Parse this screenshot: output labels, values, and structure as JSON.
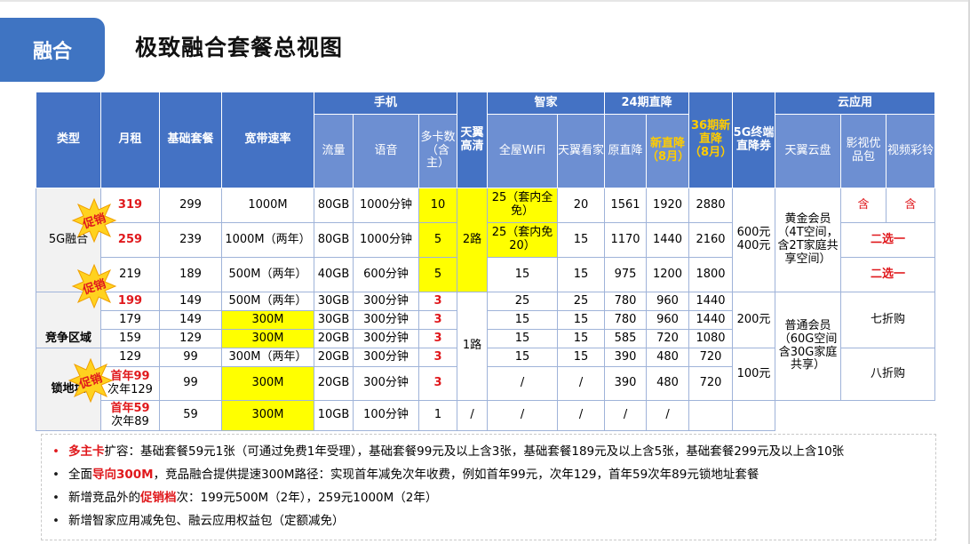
{
  "tab_label": "融合",
  "page_title": "极致融合套餐总视图",
  "table": {
    "headers": {
      "type": "类型",
      "monthly_rent": "月租",
      "base_package": "基础套餐",
      "bandwidth": "宽带速率",
      "mobile": "手机",
      "traffic": "流量",
      "voice": "语音",
      "multi_card": "多卡数（含主）",
      "hd": "天翼高清",
      "smart_home": "智家",
      "wifi": "全屋WiFi",
      "tianyi_home": "天翼看家",
      "direct_24": "24期直降",
      "orig_direct": "原直降",
      "new_direct": "新直降（8月）",
      "direct_36": "36期新直降（8月）",
      "terminal_5g": "5G终端直降券",
      "cloud_app": "云应用",
      "cloud_disk": "天翼云盘",
      "video_pack": "影视优品包",
      "ringtone": "视频彩铃"
    },
    "groups": {
      "g5": "5G融合",
      "compete": "竞争区域",
      "lock": "锁地址"
    },
    "promo_label": "促销",
    "rows": [
      {
        "rent": "319",
        "base": "299",
        "bw": "1000M",
        "flow": "80GB",
        "voice": "1000分钟",
        "cards": "10",
        "wifi": "25（套内全免）",
        "home": "20",
        "orig": "1561",
        "new": "1920",
        "d36": "2880"
      },
      {
        "rent": "259",
        "base": "239",
        "bw": "1000M（两年）",
        "flow": "80GB",
        "voice": "1000分钟",
        "cards": "5",
        "wifi": "25（套内免20）",
        "home": "15",
        "orig": "1170",
        "new": "1440",
        "d36": "2160"
      },
      {
        "rent": "219",
        "base": "189",
        "bw": "500M（两年）",
        "flow": "40GB",
        "voice": "600分钟",
        "cards": "5",
        "wifi": "15",
        "home": "15",
        "orig": "975",
        "new": "1200",
        "d36": "1800"
      },
      {
        "rent": "199",
        "base": "149",
        "bw": "500M（两年）",
        "flow": "30GB",
        "voice": "300分钟",
        "cards": "3",
        "wifi": "25",
        "home": "25",
        "orig": "780",
        "new": "960",
        "d36": "1440"
      },
      {
        "rent": "179",
        "base": "149",
        "bw": "300M",
        "flow": "30GB",
        "voice": "300分钟",
        "cards": "3",
        "wifi": "15",
        "home": "15",
        "orig": "780",
        "new": "960",
        "d36": "1440"
      },
      {
        "rent": "159",
        "base": "129",
        "bw": "300M",
        "flow": "20GB",
        "voice": "300分钟",
        "cards": "3",
        "wifi": "15",
        "home": "15",
        "orig": "585",
        "new": "720",
        "d36": "1080"
      },
      {
        "rent": "129",
        "base": "99",
        "bw": "300M（两年）",
        "flow": "20GB",
        "voice": "300分钟",
        "cards": "3",
        "wifi": "15",
        "home": "15",
        "orig": "390",
        "new": "480",
        "d36": "720"
      },
      {
        "rent_a": "首年99",
        "rent_b": "次年129",
        "base": "99",
        "bw": "300M",
        "flow": "20GB",
        "voice": "300分钟",
        "cards": "3",
        "wifi": "/",
        "home": "/",
        "orig": "390",
        "new": "480",
        "d36": "720"
      },
      {
        "rent_a": "首年59",
        "rent_b": "次年89",
        "base": "59",
        "bw": "300M",
        "flow": "10GB",
        "voice": "100分钟",
        "cards": "1",
        "hd": "/",
        "wifi": "/",
        "home": "/",
        "orig": "/",
        "new": "/",
        "d36": ""
      }
    ],
    "hd_2": "2路",
    "hd_1": "1路",
    "coupon_600": "600元 400元",
    "coupon_200": "200元",
    "coupon_100": "100元",
    "gold_member": "黄金会员（4T空间，含2T家庭共享空间）",
    "normal_member": "普通会员（60G空间含30G家庭共享）",
    "incl": "含",
    "pick_one": "二选一",
    "disc_70": "七折购",
    "disc_80": "八折购"
  },
  "notes": [
    {
      "bullet": "•",
      "hl": "多主卡",
      "text": "扩容：基础套餐59元1张（可通过免费1年受理），基础套餐99元及以上含3张，基础套餐189元及以上含5张，基础套餐299元及以上含10张"
    },
    {
      "bullet": "•",
      "pre": "全面",
      "hl": "导向300M",
      "text": "，竞品融合提供提速300M路径：实现首年减免次年收费，例如首年99元，次年129，首年59次年89元锁地址套餐"
    },
    {
      "bullet": "•",
      "pre": "新增竞品外的",
      "hl": "促销档",
      "text": "次：199元500M（2年），259元1000M（2年）"
    },
    {
      "bullet": "•",
      "text": "新增智家应用减免包、融云应用权益包（定额减免）"
    }
  ],
  "colors": {
    "accent": "#4472c4",
    "header_light": "#6d8fd2",
    "highlight": "#ffff00",
    "red": "#e0191d",
    "orange": "#ffcc00"
  }
}
